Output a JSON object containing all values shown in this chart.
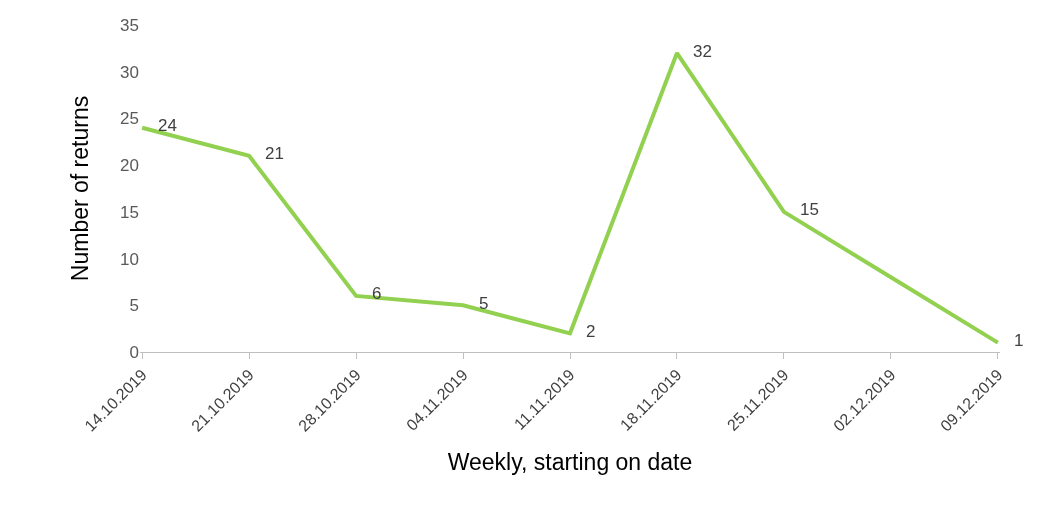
{
  "chart_data": {
    "type": "line",
    "xlabel": "Weekly, starting on date",
    "ylabel": "Number of returns",
    "categories": [
      "14.10.2019",
      "21.10.2019",
      "28.10.2019",
      "04.11.2019",
      "11.11.2019",
      "18.11.2019",
      "25.11.2019",
      "02.12.2019",
      "09.12.2019"
    ],
    "series": [
      {
        "color": "#92d050",
        "values": [
          24,
          21,
          6,
          5,
          2,
          32,
          15,
          8,
          1
        ],
        "value_labels": [
          "24",
          "21",
          "6",
          "5",
          "2",
          "32",
          "15",
          null,
          "1"
        ]
      }
    ],
    "ylim": [
      0,
      35
    ],
    "yticks": [
      0,
      5,
      10,
      15,
      20,
      25,
      30,
      35
    ],
    "grid": false,
    "marker": "none",
    "line_style": "solid"
  }
}
